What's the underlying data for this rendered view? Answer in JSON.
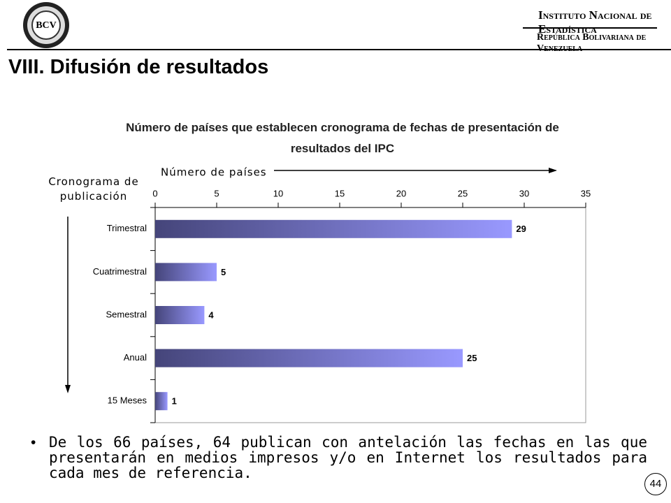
{
  "header": {
    "logo_left": "BCV",
    "logo_right": "Instituto Nacional de Estadística",
    "logo_right_sub": "República Bolivariana de Venezuela",
    "title": "VIII. Difusión de resultados"
  },
  "chart_data": {
    "type": "hbar",
    "title": "Número de países que establecen cronograma de fechas de presentación de resultados del IPC",
    "x_label": "Número de países",
    "y_label": "Cronograma de publicación",
    "categories": [
      "Trimestral",
      "Cuatrimestral",
      "Semestral",
      "Anual",
      "15 Meses"
    ],
    "values": [
      29,
      5,
      4,
      25,
      1
    ],
    "gradient": [
      "#45457a",
      "#9999ff"
    ],
    "xlim": [
      0,
      35
    ],
    "xticks": [
      0,
      5,
      10,
      15,
      20,
      25,
      30,
      35
    ]
  },
  "body": {
    "bullet": "De los 66 países, 64 publican con antelación las fechas en las que presentarán en medios impresos y/o en Internet los resultados para cada mes de referencia."
  },
  "footer": {
    "page": "44"
  }
}
